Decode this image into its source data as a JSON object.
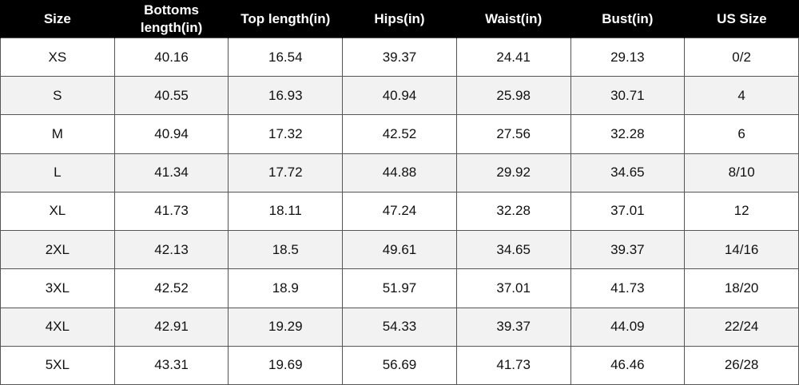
{
  "table": {
    "header": [
      "Size",
      "Bottoms length(in)",
      "Top length(in)",
      "Hips(in)",
      "Waist(in)",
      "Bust(in)",
      "US Size"
    ],
    "rows": [
      [
        "XS",
        "40.16",
        "16.54",
        "39.37",
        "24.41",
        "29.13",
        "0/2"
      ],
      [
        "S",
        "40.55",
        "16.93",
        "40.94",
        "25.98",
        "30.71",
        "4"
      ],
      [
        "M",
        "40.94",
        "17.32",
        "42.52",
        "27.56",
        "32.28",
        "6"
      ],
      [
        "L",
        "41.34",
        "17.72",
        "44.88",
        "29.92",
        "34.65",
        "8/10"
      ],
      [
        "XL",
        "41.73",
        "18.11",
        "47.24",
        "32.28",
        "37.01",
        "12"
      ],
      [
        "2XL",
        "42.13",
        "18.5",
        "49.61",
        "34.65",
        "39.37",
        "14/16"
      ],
      [
        "3XL",
        "42.52",
        "18.9",
        "51.97",
        "37.01",
        "41.73",
        "18/20"
      ],
      [
        "4XL",
        "42.91",
        "19.29",
        "54.33",
        "39.37",
        "44.09",
        "22/24"
      ],
      [
        "5XL",
        "43.31",
        "19.69",
        "56.69",
        "41.73",
        "46.46",
        "26/28"
      ]
    ]
  }
}
